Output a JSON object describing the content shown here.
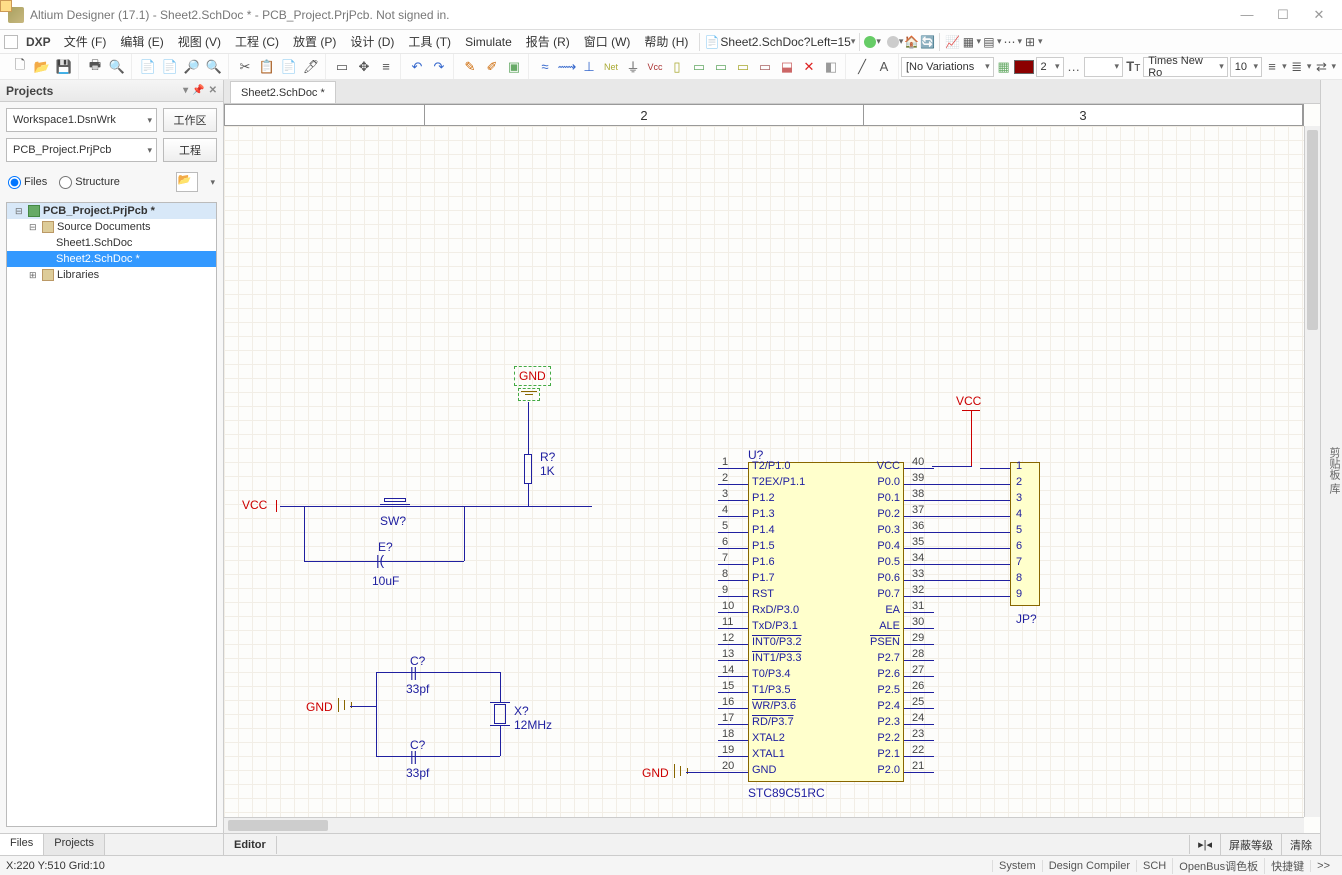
{
  "window": {
    "title": "Altium Designer (17.1) - Sheet2.SchDoc * - PCB_Project.PrjPcb. Not signed in.",
    "min": "—",
    "max": "☐",
    "close": "✕"
  },
  "menu": {
    "dxp": "DXP",
    "items": [
      "文件 (F)",
      "编辑 (E)",
      "视图 (V)",
      "工程 (C)",
      "放置 (P)",
      "设计 (D)",
      "工具 (T)",
      "Simulate",
      "报告 (R)",
      "窗口 (W)",
      "帮助 (H)"
    ],
    "tailDoc": "Sheet2.SchDoc?Left=15"
  },
  "toolbar2": {
    "variations": "[No Variations",
    "numBox": "2",
    "font": "Times New Ro",
    "fontsize": "10"
  },
  "projectsPanel": {
    "title": "Projects",
    "workspace": "Workspace1.DsnWrk",
    "workspaceBtn": "工作区",
    "project": "PCB_Project.PrjPcb",
    "projectBtn": "工程",
    "radioFiles": "Files",
    "radioStructure": "Structure",
    "tree": {
      "root": "PCB_Project.PrjPcb *",
      "srcDocs": "Source Documents",
      "sheet1": "Sheet1.SchDoc",
      "sheet2": "Sheet2.SchDoc *",
      "libs": "Libraries"
    },
    "tabFiles": "Files",
    "tabProjects": "Projects"
  },
  "docTab": "Sheet2.SchDoc *",
  "ruler": {
    "c2": "2",
    "c3": "3"
  },
  "editorFooter": {
    "label": "Editor",
    "mask": "屏蔽等级",
    "clear": "清除"
  },
  "rightStrip": "剪贴板  库",
  "status": {
    "coords": "X:220 Y:510  Grid:10",
    "cells": [
      "System",
      "Design Compiler",
      "SCH",
      "OpenBus调色板",
      "快捷键",
      ">>"
    ]
  },
  "schematic": {
    "gndTop": "GND",
    "r": "R?",
    "rval": "1K",
    "vccLeft": "VCC",
    "sw": "SW?",
    "e": "E?",
    "eval": "10uF",
    "c1": "C?",
    "c1val": "33pf",
    "c2": "C?",
    "c2val": "33pf",
    "x": "X?",
    "xval": "12MHz",
    "gndLeft": "GND",
    "gndBot": "GND",
    "vccTop": "VCC",
    "u": "U?",
    "icName": "STC89C51RC",
    "jp": "JP?",
    "leftPins": [
      {
        "n": "1",
        "name": "T2/P1.0"
      },
      {
        "n": "2",
        "name": "T2EX/P1.1"
      },
      {
        "n": "3",
        "name": "P1.2"
      },
      {
        "n": "4",
        "name": "P1.3"
      },
      {
        "n": "5",
        "name": "P1.4"
      },
      {
        "n": "6",
        "name": "P1.5"
      },
      {
        "n": "7",
        "name": "P1.6"
      },
      {
        "n": "8",
        "name": "P1.7"
      },
      {
        "n": "9",
        "name": "RST"
      },
      {
        "n": "10",
        "name": "RxD/P3.0"
      },
      {
        "n": "11",
        "name": "TxD/P3.1"
      },
      {
        "n": "12",
        "name": "INT0/P3.2",
        "ov": true
      },
      {
        "n": "13",
        "name": "INT1/P3.3",
        "ov": true
      },
      {
        "n": "14",
        "name": "T0/P3.4"
      },
      {
        "n": "15",
        "name": "T1/P3.5"
      },
      {
        "n": "16",
        "name": "WR/P3.6",
        "ov": true
      },
      {
        "n": "17",
        "name": "RD/P3.7",
        "ov": true
      },
      {
        "n": "18",
        "name": "XTAL2"
      },
      {
        "n": "19",
        "name": "XTAL1"
      },
      {
        "n": "20",
        "name": "GND"
      }
    ],
    "rightPins": [
      {
        "n": "40",
        "name": "VCC"
      },
      {
        "n": "39",
        "name": "P0.0"
      },
      {
        "n": "38",
        "name": "P0.1"
      },
      {
        "n": "37",
        "name": "P0.2"
      },
      {
        "n": "36",
        "name": "P0.3"
      },
      {
        "n": "35",
        "name": "P0.4"
      },
      {
        "n": "34",
        "name": "P0.5"
      },
      {
        "n": "33",
        "name": "P0.6"
      },
      {
        "n": "32",
        "name": "P0.7"
      },
      {
        "n": "31",
        "name": "EA"
      },
      {
        "n": "30",
        "name": "ALE"
      },
      {
        "n": "29",
        "name": "PSEN",
        "ov": true
      },
      {
        "n": "28",
        "name": "P2.7"
      },
      {
        "n": "27",
        "name": "P2.6"
      },
      {
        "n": "26",
        "name": "P2.5"
      },
      {
        "n": "25",
        "name": "P2.4"
      },
      {
        "n": "24",
        "name": "P2.3"
      },
      {
        "n": "23",
        "name": "P2.2"
      },
      {
        "n": "22",
        "name": "P2.1"
      },
      {
        "n": "21",
        "name": "P2.0"
      }
    ],
    "jpPins": [
      "1",
      "2",
      "3",
      "4",
      "5",
      "6",
      "7",
      "8",
      "9"
    ]
  }
}
